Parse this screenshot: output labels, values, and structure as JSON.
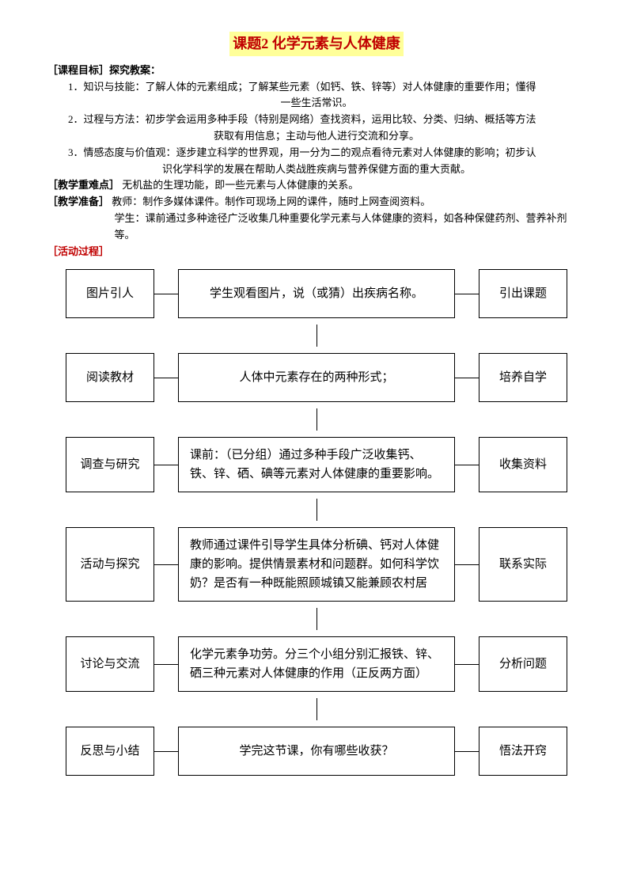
{
  "title": "课题2 化学元素与人体健康",
  "objectives_label": "［课程目标］探究教案：",
  "items": [
    {
      "num": "1．",
      "label": "知识与技能：",
      "text1": "了解人体的元素组成；了解某些元素（如钙、铁、锌等）对人体健康的重要作用；懂得",
      "text2": "一些生活常识。"
    },
    {
      "num": "2．",
      "label": "过程与方法：",
      "text1": "初步学会运用多种手段（特别是网络）查找资料，运用比较、分类、归纳、概括等方法",
      "text2": "获取有用信息；主动与他人进行交流和分享。"
    },
    {
      "num": "3．",
      "label": "情感态度与价值观：",
      "text1": "逐步建立科学的世界观，用一分为二的观点看待元素对人体健康的影响；初步认",
      "text2": "识化学科学的发展在帮助人类战胜疾病与营养保健方面的重大贡献。"
    }
  ],
  "difficulty_label": "［教学重难点］",
  "difficulty_text": "无机盐的生理功能，即一些元素与人体健康的关系。",
  "prep_label": "［教学准备］",
  "prep_teacher": "教师：制作多媒体课件。制作可现场上网的课件，随时上网查阅资料。",
  "prep_student": "学生：课前通过多种途径广泛收集几种重要化学元素与人体健康的资料，如各种保健药剂、营养补剂等。",
  "process_label": "［活动过程］",
  "flow": {
    "rows": [
      {
        "left": "图片引人",
        "mid": "学生观看图片，说（或猜）出疾病名称。",
        "right": "引出课题",
        "center": true
      },
      {
        "left": "阅读教材",
        "mid": "人体中元素存在的两种形式；",
        "right": "培养自学",
        "center": true
      },
      {
        "left": "调查与研究",
        "mid": "课前：（已分组）通过多种手段广泛收集钙、铁、锌、硒、碘等元素对人体健康的重要影响。",
        "right": "收集资料",
        "center": false
      },
      {
        "left": "活动与探究",
        "mid": "教师通过课件引导学生具体分析碘、钙对人体健康的影响。提供情景素材和问题群。如何科学饮奶？是否有一种既能照顾城镇又能兼顾农村居",
        "right": "联系实际",
        "center": false
      },
      {
        "left": "讨论与交流",
        "mid": "化学元素争功劳。分三个小组分别汇报铁、锌、硒三种元素对人体健康的作用（正反两方面）",
        "right": "分析问题",
        "center": false
      },
      {
        "left": "反思与小结",
        "mid": "学完这节课，你有哪些收获？",
        "right": "悟法开窍",
        "center": true
      }
    ]
  }
}
